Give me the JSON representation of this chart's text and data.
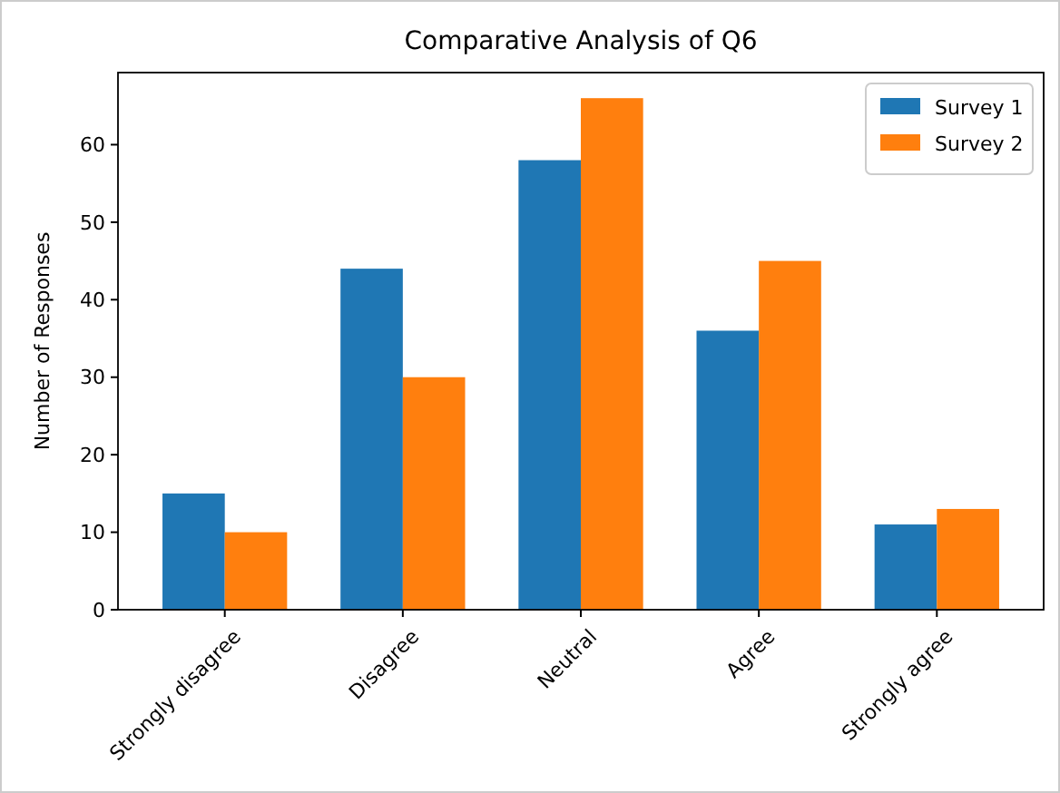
{
  "chart_data": {
    "type": "bar",
    "title": "Comparative Analysis of Q6",
    "ylabel": "Number of Responses",
    "categories": [
      "Strongly disagree",
      "Disagree",
      "Neutral",
      "Agree",
      "Strongly agree"
    ],
    "series": [
      {
        "name": "Survey 1",
        "color": "#1f77b4",
        "values": [
          15,
          44,
          58,
          36,
          11
        ]
      },
      {
        "name": "Survey 2",
        "color": "#ff7f0e",
        "values": [
          10,
          30,
          66,
          45,
          13
        ]
      }
    ],
    "ylim": [
      0,
      69.3
    ],
    "yticks": [
      0,
      10,
      20,
      30,
      40,
      50,
      60
    ],
    "legend": "top right"
  }
}
